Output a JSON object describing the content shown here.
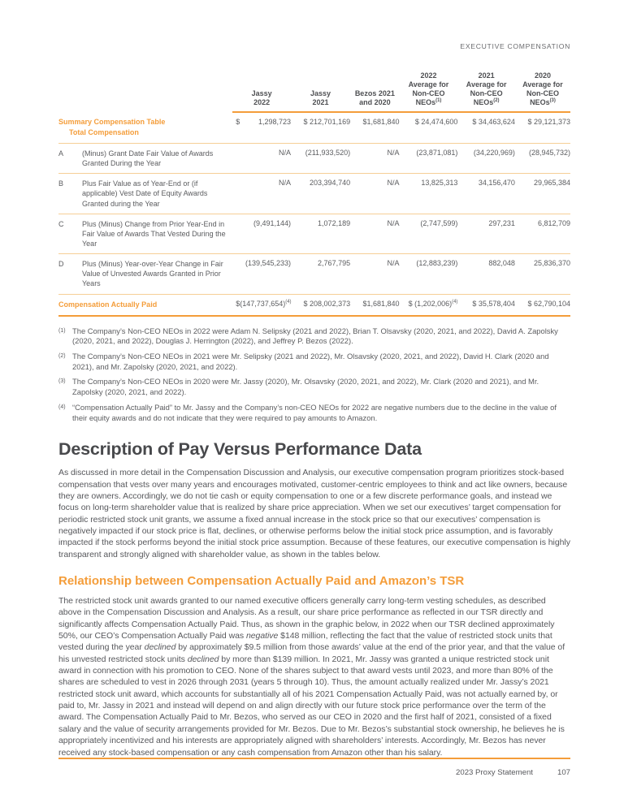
{
  "header": {
    "title": "EXECUTIVE COMPENSATION"
  },
  "colors": {
    "accent": "#F49D3A",
    "rule_light": "#F6CF96",
    "text_body": "#57585C",
    "text_heading": "#48494C",
    "text_muted": "#6A6B6E"
  },
  "table": {
    "col_headers": [
      {
        "lines": [
          "Jassy",
          "2022"
        ]
      },
      {
        "lines": [
          "Jassy",
          "2021"
        ]
      },
      {
        "lines": [
          "Bezos 2021",
          "and 2020"
        ]
      },
      {
        "lines": [
          "2022",
          "Average for",
          "Non-CEO",
          "NEOs^(1)"
        ]
      },
      {
        "lines": [
          "2021",
          "Average for",
          "Non-CEO",
          "NEOs^(2)"
        ]
      },
      {
        "lines": [
          "2020",
          "Average for",
          "Non-CEO",
          "NEOs^(3)"
        ]
      }
    ],
    "summary_row": {
      "label_lines": [
        "Summary Compensation Table",
        "Total Compensation"
      ],
      "dollar_prefix": "$",
      "values": [
        "1,298,723",
        "$ 212,701,169",
        "$1,681,840",
        "$ 24,474,600",
        "$ 34,463,624",
        "$ 29,121,373"
      ]
    },
    "adjustment_rows": [
      {
        "letter": "A",
        "description": "(Minus) Grant Date Fair Value of Awards Granted During the Year",
        "values": [
          "N/A",
          "(211,933,520)",
          "N/A",
          "(23,871,081)",
          "(34,220,969)",
          "(28,945,732)"
        ]
      },
      {
        "letter": "B",
        "description": "Plus Fair Value as of Year-End or (if applicable) Vest Date of Equity Awards Granted during the Year",
        "values": [
          "N/A",
          "203,394,740",
          "N/A",
          "13,825,313",
          "34,156,470",
          "29,965,384"
        ]
      },
      {
        "letter": "C",
        "description": "Plus (Minus) Change from Prior Year-End in Fair Value of Awards That Vested During the Year",
        "values": [
          "(9,491,144)",
          "1,072,189",
          "N/A",
          "(2,747,599)",
          "297,231",
          "6,812,709"
        ]
      },
      {
        "letter": "D",
        "description": "Plus (Minus) Year-over-Year Change in Fair Value of Unvested Awards Granted in Prior Years",
        "values": [
          "(139,545,233)",
          "2,767,795",
          "N/A",
          "(12,883,239)",
          "882,048",
          "25,836,370"
        ]
      }
    ],
    "total_row": {
      "label": "Compensation Actually Paid",
      "values": [
        "$(147,737,654)^(4)",
        "$ 208,002,373",
        "$1,681,840",
        "$ (1,202,006)^(4)",
        "$ 35,578,404",
        "$ 62,790,104"
      ]
    },
    "footnotes": [
      {
        "marker": "(1)",
        "text": "The Company’s Non-CEO NEOs in 2022 were Adam N. Selipsky (2021 and 2022), Brian T. Olsavsky (2020, 2021, and 2022), David A. Zapolsky (2020, 2021, and 2022), Douglas J. Herrington (2022), and Jeffrey P. Bezos (2022)."
      },
      {
        "marker": "(2)",
        "text": "The Company’s Non-CEO NEOs in 2021 were Mr. Selipsky (2021 and 2022), Mr. Olsavsky (2020, 2021, and 2022), David H. Clark (2020 and 2021), and Mr. Zapolsky (2020, 2021, and 2022)."
      },
      {
        "marker": "(3)",
        "text": "The Company’s Non-CEO NEOs in 2020 were Mr. Jassy (2020), Mr. Olsavsky (2020, 2021, and 2022), Mr. Clark (2020 and 2021), and Mr. Zapolsky (2020, 2021, and 2022)."
      },
      {
        "marker": "(4)",
        "text": "“Compensation Actually Paid” to Mr. Jassy and the Company’s non-CEO NEOs for 2022 are negative numbers due to the decline in the value of their equity awards and do not indicate that they were required to pay amounts to Amazon."
      }
    ]
  },
  "sections": {
    "main_heading": "Description of Pay Versus Performance Data",
    "paragraph_1": "As discussed in more detail in the Compensation Discussion and Analysis, our executive compensation program prioritizes stock-based compensation that vests over many years and encourages motivated, customer-centric employees to think and act like owners, because they are owners. Accordingly, we do not tie cash or equity compensation to one or a few discrete performance goals, and instead we focus on long-term shareholder value that is realized by share price appreciation. When we set our executives’ target compensation for periodic restricted stock unit grants, we assume a fixed annual increase in the stock price so that our executives’ compensation is negatively impacted if our stock price is flat, declines, or otherwise performs below the initial stock price assumption, and is favorably impacted if the stock performs beyond the initial stock price assumption. Because of these features, our executive compensation is highly transparent and strongly aligned with shareholder value, as shown in the tables below.",
    "sub_heading": "Relationship between Compensation Actually Paid and Amazon’s TSR",
    "paragraph_2": "The restricted stock unit awards granted to our named executive officers generally carry long-term vesting schedules, as described above in the Compensation Discussion and Analysis. As a result, our share price performance as reflected in our TSR directly and significantly affects Compensation Actually Paid. Thus, as shown in the graphic below, in 2022 when our TSR declined approximately 50%, our CEO’s Compensation Actually Paid was *negative* $148 million, reflecting the fact that the value of restricted stock units that vested during the year *declined* by approximately $9.5 million from those awards’ value at the end of the prior year, and that the value of his unvested restricted stock units *declined* by more than $139 million. In 2021, Mr. Jassy was granted a unique restricted stock unit award in connection with his promotion to CEO. None of the shares subject to that award vests until 2023, and more than 80% of the shares are scheduled to vest in 2026 through 2031 (years 5 through 10). Thus, the amount actually realized under Mr. Jassy’s 2021 restricted stock unit award, which accounts for substantially all of his 2021 Compensation Actually Paid, was not actually earned by, or paid to, Mr. Jassy in 2021 and instead will depend on and align directly with our future stock price performance over the term of the award. The Compensation Actually Paid to Mr. Bezos, who served as our CEO in 2020 and the first half of 2021, consisted of a fixed salary and the value of security arrangements provided for Mr. Bezos. Due to Mr. Bezos’s substantial stock ownership, he believes he is appropriately incentivized and his interests are appropriately aligned with shareholders’ interests. Accordingly, Mr. Bezos has never received any stock-based compensation or any cash compensation from Amazon other than his salary."
  },
  "footer": {
    "label": "2023 Proxy Statement",
    "page_number": "107"
  }
}
